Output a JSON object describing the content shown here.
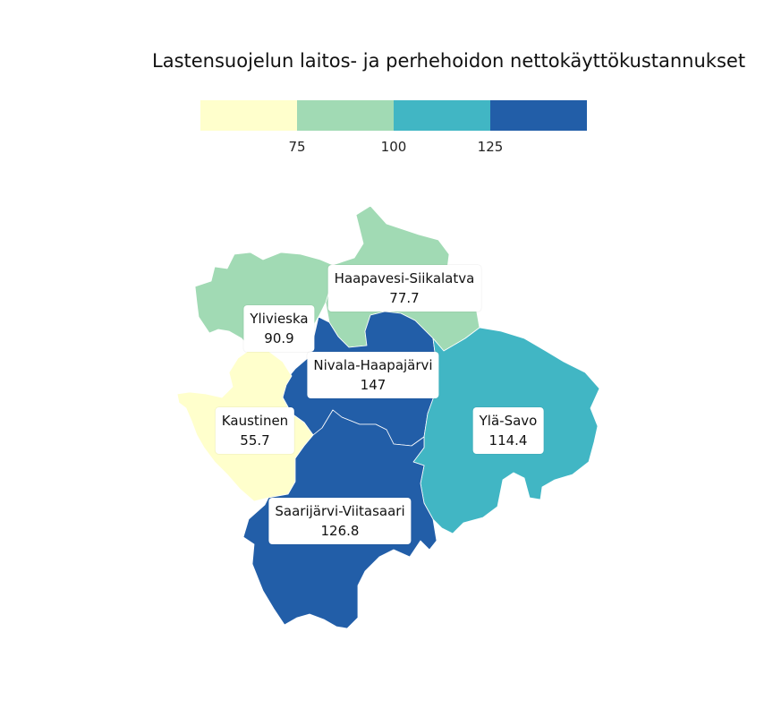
{
  "title": "Lastensuojelun laitos- ja perhehoidon nettokäyttökustannukset",
  "legend": {
    "colors": [
      "#ffffcc",
      "#a1dab4",
      "#41b6c4",
      "#225ea8"
    ],
    "breaks": [
      "75",
      "100",
      "125"
    ]
  },
  "regions": [
    {
      "name": "Haapavesi-Siikalatva",
      "value": "77.7",
      "color": "#a1dab4"
    },
    {
      "name": "Ylivieska",
      "value": "90.9",
      "color": "#a1dab4"
    },
    {
      "name": "Nivala-Haapajärvi",
      "value": "147",
      "color": "#225ea8"
    },
    {
      "name": "Kaustinen",
      "value": "55.7",
      "color": "#ffffcc"
    },
    {
      "name": "Ylä-Savo",
      "value": "114.4",
      "color": "#41b6c4"
    },
    {
      "name": "Saarijärvi-Viitasaari",
      "value": "126.8",
      "color": "#225ea8"
    }
  ]
}
